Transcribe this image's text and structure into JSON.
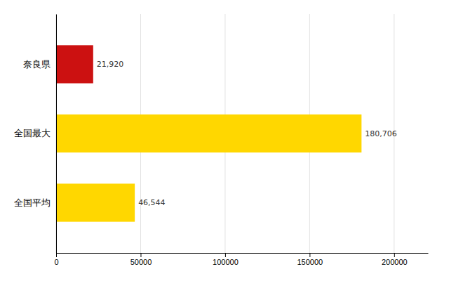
{
  "chart_data": {
    "type": "bar",
    "orientation": "horizontal",
    "categories": [
      "全国平均",
      "全国最大",
      "奈良県"
    ],
    "values": [
      46544,
      180706,
      21920
    ],
    "colors": [
      "#FFD700",
      "#FFD700",
      "#CC1111"
    ],
    "data_labels": true,
    "value_labels": [
      "46,544",
      "180,706",
      "21,920"
    ],
    "xlim": [
      0,
      220000
    ],
    "xticks": [
      0,
      50000,
      100000,
      150000,
      200000
    ],
    "grid": true
  }
}
